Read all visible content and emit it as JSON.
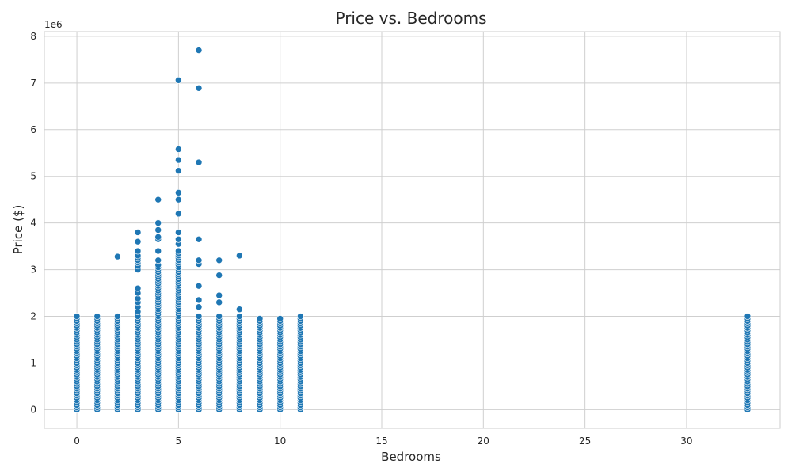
{
  "chart_data": {
    "type": "scatter",
    "title": "Price vs. Bedrooms",
    "xlabel": "Bedrooms",
    "ylabel": "Price ($)",
    "y_offset_label": "1e6",
    "xlim": [
      -1.6,
      34.6
    ],
    "ylim": [
      -400000,
      8100000
    ],
    "x_ticks": [
      0,
      5,
      10,
      15,
      20,
      25,
      30
    ],
    "y_ticks": [
      0,
      1,
      2,
      3,
      4,
      5,
      6,
      7,
      8
    ],
    "grid": true,
    "point_color": "#1f77b4",
    "points": [
      {
        "x": 0,
        "y": [
          0,
          50000,
          100000,
          150000,
          200000,
          250000,
          300000,
          350000,
          400000,
          450000,
          500000,
          550000,
          600000,
          650000,
          700000,
          750000,
          800000,
          850000,
          900000,
          950000,
          1000000,
          1050000,
          1100000,
          1150000,
          1200000,
          1250000,
          1300000,
          1350000,
          1400000,
          1450000,
          1500000,
          1550000,
          1600000,
          1650000,
          1700000,
          1750000,
          1800000,
          1850000,
          1900000,
          1950000,
          2000000
        ]
      },
      {
        "x": 1,
        "y": [
          0,
          50000,
          100000,
          150000,
          200000,
          250000,
          300000,
          350000,
          400000,
          450000,
          500000,
          550000,
          600000,
          650000,
          700000,
          750000,
          800000,
          850000,
          900000,
          950000,
          1000000,
          1050000,
          1100000,
          1150000,
          1200000,
          1250000,
          1300000,
          1350000,
          1400000,
          1450000,
          1500000,
          1550000,
          1600000,
          1650000,
          1700000,
          1750000,
          1800000,
          1850000,
          1900000,
          1950000,
          2000000
        ]
      },
      {
        "x": 2,
        "y": [
          0,
          50000,
          100000,
          150000,
          200000,
          250000,
          300000,
          350000,
          400000,
          450000,
          500000,
          550000,
          600000,
          650000,
          700000,
          750000,
          800000,
          850000,
          900000,
          950000,
          1000000,
          1050000,
          1100000,
          1150000,
          1200000,
          1250000,
          1300000,
          1350000,
          1400000,
          1450000,
          1500000,
          1550000,
          1600000,
          1650000,
          1700000,
          1750000,
          1800000,
          1850000,
          1900000,
          1950000,
          2000000,
          3280000
        ]
      },
      {
        "x": 3,
        "y": [
          0,
          50000,
          100000,
          150000,
          200000,
          250000,
          300000,
          350000,
          400000,
          450000,
          500000,
          550000,
          600000,
          650000,
          700000,
          750000,
          800000,
          850000,
          900000,
          950000,
          1000000,
          1050000,
          1100000,
          1150000,
          1200000,
          1250000,
          1300000,
          1350000,
          1400000,
          1450000,
          1500000,
          1550000,
          1600000,
          1650000,
          1700000,
          1750000,
          1800000,
          1850000,
          1900000,
          1950000,
          2000000,
          2100000,
          2200000,
          2300000,
          2380000,
          2500000,
          2600000,
          3000000,
          3080000,
          3150000,
          3200000,
          3250000,
          3300000,
          3400000,
          3600000,
          3800000
        ]
      },
      {
        "x": 4,
        "y": [
          0,
          50000,
          100000,
          150000,
          200000,
          250000,
          300000,
          350000,
          400000,
          450000,
          500000,
          550000,
          600000,
          650000,
          700000,
          750000,
          800000,
          850000,
          900000,
          950000,
          1000000,
          1050000,
          1100000,
          1150000,
          1200000,
          1250000,
          1300000,
          1350000,
          1400000,
          1450000,
          1500000,
          1550000,
          1600000,
          1650000,
          1700000,
          1750000,
          1800000,
          1850000,
          1900000,
          1950000,
          2000000,
          2050000,
          2100000,
          2150000,
          2200000,
          2250000,
          2300000,
          2350000,
          2400000,
          2450000,
          2500000,
          2550000,
          2600000,
          2650000,
          2700000,
          2750000,
          2800000,
          2850000,
          2900000,
          2950000,
          3000000,
          3050000,
          3100000,
          3200000,
          3400000,
          3650000,
          3700000,
          3850000,
          4000000,
          4500000
        ]
      },
      {
        "x": 5,
        "y": [
          0,
          50000,
          100000,
          150000,
          200000,
          250000,
          300000,
          350000,
          400000,
          450000,
          500000,
          550000,
          600000,
          650000,
          700000,
          750000,
          800000,
          850000,
          900000,
          950000,
          1000000,
          1050000,
          1100000,
          1150000,
          1200000,
          1250000,
          1300000,
          1350000,
          1400000,
          1450000,
          1500000,
          1550000,
          1600000,
          1650000,
          1700000,
          1750000,
          1800000,
          1850000,
          1900000,
          1950000,
          2000000,
          2050000,
          2100000,
          2150000,
          2200000,
          2250000,
          2300000,
          2350000,
          2400000,
          2450000,
          2500000,
          2550000,
          2600000,
          2650000,
          2700000,
          2750000,
          2800000,
          2850000,
          2900000,
          2950000,
          3000000,
          3050000,
          3100000,
          3150000,
          3200000,
          3250000,
          3300000,
          3350000,
          3400000,
          3550000,
          3650000,
          3800000,
          4200000,
          4500000,
          4650000,
          5120000,
          5350000,
          5580000,
          7060000
        ]
      },
      {
        "x": 6,
        "y": [
          0,
          50000,
          100000,
          150000,
          200000,
          250000,
          300000,
          350000,
          400000,
          450000,
          500000,
          550000,
          600000,
          650000,
          700000,
          750000,
          800000,
          850000,
          900000,
          950000,
          1000000,
          1050000,
          1100000,
          1150000,
          1200000,
          1250000,
          1300000,
          1350000,
          1400000,
          1450000,
          1500000,
          1550000,
          1600000,
          1650000,
          1700000,
          1750000,
          1800000,
          1850000,
          1900000,
          1950000,
          2000000,
          2200000,
          2350000,
          2650000,
          3120000,
          3200000,
          3650000,
          5300000,
          6890000,
          7700000
        ]
      },
      {
        "x": 7,
        "y": [
          0,
          50000,
          100000,
          150000,
          200000,
          250000,
          300000,
          350000,
          400000,
          450000,
          500000,
          550000,
          600000,
          650000,
          700000,
          750000,
          800000,
          850000,
          900000,
          950000,
          1000000,
          1050000,
          1100000,
          1150000,
          1200000,
          1250000,
          1300000,
          1350000,
          1400000,
          1450000,
          1500000,
          1550000,
          1600000,
          1650000,
          1700000,
          1750000,
          1800000,
          1850000,
          1900000,
          1950000,
          2000000,
          2300000,
          2450000,
          2880000,
          3200000
        ]
      },
      {
        "x": 8,
        "y": [
          0,
          50000,
          100000,
          150000,
          200000,
          250000,
          300000,
          350000,
          400000,
          450000,
          500000,
          550000,
          600000,
          650000,
          700000,
          750000,
          800000,
          850000,
          900000,
          950000,
          1000000,
          1050000,
          1100000,
          1150000,
          1200000,
          1250000,
          1300000,
          1350000,
          1400000,
          1450000,
          1500000,
          1550000,
          1600000,
          1650000,
          1700000,
          1750000,
          1800000,
          1850000,
          1900000,
          1950000,
          2000000,
          2150000,
          3300000
        ]
      },
      {
        "x": 9,
        "y": [
          0,
          50000,
          100000,
          150000,
          200000,
          250000,
          300000,
          350000,
          400000,
          450000,
          500000,
          550000,
          600000,
          650000,
          700000,
          750000,
          800000,
          850000,
          900000,
          950000,
          1000000,
          1050000,
          1100000,
          1150000,
          1200000,
          1250000,
          1300000,
          1350000,
          1400000,
          1450000,
          1500000,
          1550000,
          1600000,
          1650000,
          1700000,
          1750000,
          1800000,
          1850000,
          1900000,
          1950000
        ]
      },
      {
        "x": 10,
        "y": [
          0,
          50000,
          100000,
          150000,
          200000,
          250000,
          300000,
          350000,
          400000,
          450000,
          500000,
          550000,
          600000,
          650000,
          700000,
          750000,
          800000,
          850000,
          900000,
          950000,
          1000000,
          1050000,
          1100000,
          1150000,
          1200000,
          1250000,
          1300000,
          1350000,
          1400000,
          1450000,
          1500000,
          1550000,
          1600000,
          1650000,
          1700000,
          1750000,
          1800000,
          1850000,
          1900000,
          1950000
        ]
      },
      {
        "x": 11,
        "y": [
          0,
          50000,
          100000,
          150000,
          200000,
          250000,
          300000,
          350000,
          400000,
          450000,
          500000,
          550000,
          600000,
          650000,
          700000,
          750000,
          800000,
          850000,
          900000,
          950000,
          1000000,
          1050000,
          1100000,
          1150000,
          1200000,
          1250000,
          1300000,
          1350000,
          1400000,
          1450000,
          1500000,
          1550000,
          1600000,
          1650000,
          1700000,
          1750000,
          1800000,
          1850000,
          1900000,
          1950000,
          2000000
        ]
      },
      {
        "x": 33,
        "y": [
          0,
          50000,
          100000,
          150000,
          200000,
          250000,
          300000,
          350000,
          400000,
          450000,
          500000,
          550000,
          600000,
          650000,
          700000,
          750000,
          800000,
          850000,
          900000,
          950000,
          1000000,
          1050000,
          1100000,
          1150000,
          1200000,
          1250000,
          1300000,
          1350000,
          1400000,
          1450000,
          1500000,
          1550000,
          1600000,
          1650000,
          1700000,
          1750000,
          1800000,
          1850000,
          1900000,
          1950000,
          2000000
        ]
      }
    ]
  }
}
